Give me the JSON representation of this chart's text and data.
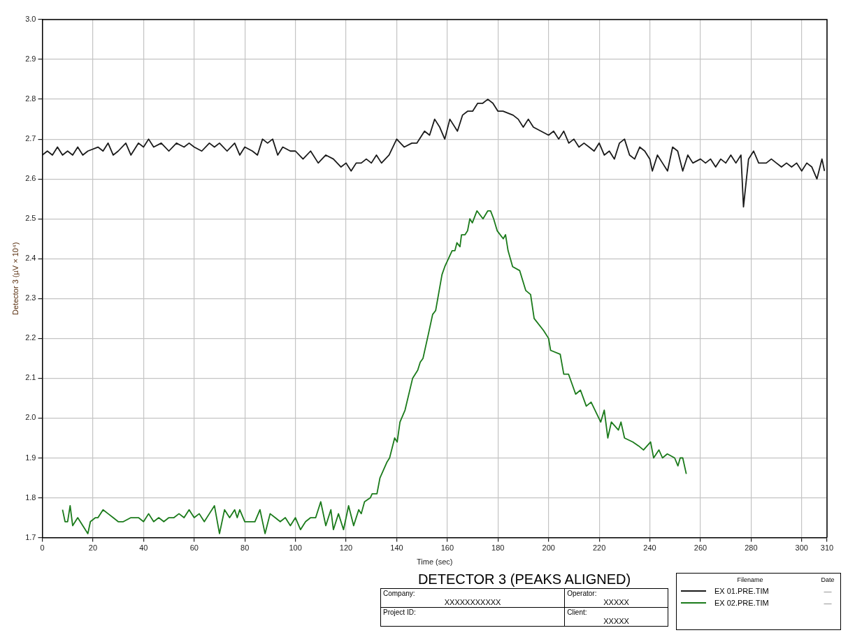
{
  "chart_data": {
    "type": "line",
    "title": "DETECTOR 3 (PEAKS ALIGNED)",
    "xlabel": "Time (sec)",
    "ylabel": "Detector 3 (µV × 10⁴)",
    "legend_title": "Filename",
    "legend": "bottom right",
    "grid": true,
    "xlim": [
      0,
      310
    ],
    "xticks": [
      0,
      20,
      40,
      60,
      80,
      100,
      120,
      140,
      160,
      180,
      200,
      220,
      240,
      260,
      280,
      300,
      310
    ],
    "ylim": [
      1.7,
      3.0
    ],
    "yticks": [
      1.7,
      1.8,
      1.9,
      {
        "value": 2,
        "label": "2.0"
      },
      2.1,
      2.2,
      2.3,
      2.4,
      2.5,
      2.6,
      2.7,
      2.8,
      2.9,
      {
        "value": 3,
        "label": "3.0"
      }
    ],
    "annotations": [
      "Date",
      "—",
      "—",
      "Company:",
      "XXXXXXXXXXX",
      "Operator:",
      "XXXXX",
      "Project ID:",
      "Client:",
      "XXXXX"
    ],
    "series": [
      {
        "name": "EX 01.PRE.TIM",
        "color": "#1a1a1a",
        "x": [
          0,
          2,
          4,
          6,
          8,
          10,
          12,
          14,
          16,
          18,
          22,
          24,
          26,
          28,
          30,
          33,
          35,
          38,
          40,
          42,
          44,
          47,
          50,
          53,
          56,
          58,
          60,
          63,
          66,
          68,
          70,
          73,
          76,
          78,
          80,
          83,
          85,
          87,
          89,
          91,
          93,
          95,
          98,
          100,
          103,
          106,
          109,
          112,
          115,
          118,
          120,
          122,
          124,
          126,
          128,
          130,
          132,
          134,
          137,
          140,
          143,
          146,
          148,
          151,
          153,
          155,
          157,
          159,
          161,
          164,
          166,
          168,
          170,
          172,
          174,
          176,
          178,
          180,
          182,
          186,
          188,
          190,
          192,
          194,
          197,
          200,
          202,
          204,
          206,
          208,
          210,
          212,
          214,
          216,
          218,
          220,
          222,
          224,
          226,
          228,
          230,
          232,
          234,
          236,
          238,
          240,
          241,
          243,
          245,
          247,
          249,
          251,
          253,
          255,
          257,
          260,
          262,
          264,
          266,
          268,
          270,
          272,
          274,
          276,
          277,
          279,
          281,
          283,
          286,
          288,
          290,
          292,
          294,
          296,
          298,
          300,
          302,
          304,
          306,
          308,
          309
        ],
        "values": [
          2.66,
          2.67,
          2.66,
          2.68,
          2.66,
          2.67,
          2.66,
          2.68,
          2.66,
          2.67,
          2.68,
          2.67,
          2.69,
          2.66,
          2.67,
          2.69,
          2.66,
          2.69,
          2.68,
          2.7,
          2.68,
          2.69,
          2.67,
          2.69,
          2.68,
          2.69,
          2.68,
          2.67,
          2.69,
          2.68,
          2.69,
          2.67,
          2.69,
          2.66,
          2.68,
          2.67,
          2.66,
          2.7,
          2.69,
          2.7,
          2.66,
          2.68,
          2.67,
          2.67,
          2.65,
          2.67,
          2.64,
          2.66,
          2.65,
          2.63,
          2.64,
          2.62,
          2.64,
          2.64,
          2.65,
          2.64,
          2.66,
          2.64,
          2.66,
          2.7,
          2.68,
          2.69,
          2.69,
          2.72,
          2.71,
          2.75,
          2.73,
          2.7,
          2.75,
          2.72,
          2.76,
          2.77,
          2.77,
          2.79,
          2.79,
          2.8,
          2.79,
          2.77,
          2.77,
          2.76,
          2.75,
          2.73,
          2.75,
          2.73,
          2.72,
          2.71,
          2.72,
          2.7,
          2.72,
          2.69,
          2.7,
          2.68,
          2.69,
          2.68,
          2.67,
          2.69,
          2.66,
          2.67,
          2.65,
          2.69,
          2.7,
          2.66,
          2.65,
          2.68,
          2.67,
          2.65,
          2.62,
          2.66,
          2.64,
          2.62,
          2.68,
          2.67,
          2.62,
          2.66,
          2.64,
          2.65,
          2.64,
          2.65,
          2.63,
          2.65,
          2.64,
          2.66,
          2.64,
          2.66,
          2.53,
          2.65,
          2.67,
          2.64,
          2.64,
          2.65,
          2.64,
          2.63,
          2.64,
          2.63,
          2.64,
          2.62,
          2.64,
          2.63,
          2.6,
          2.65,
          2.62
        ]
      },
      {
        "name": "EX 02.PRE.TIM",
        "color": "#1a7a1a",
        "x": [
          8,
          9,
          10,
          11,
          12,
          14,
          16,
          18,
          19,
          21,
          22,
          24,
          26,
          28,
          30,
          32,
          35,
          38,
          40,
          42,
          44,
          46,
          48,
          50,
          52,
          54,
          56,
          58,
          60,
          62,
          64,
          66,
          68,
          70,
          72,
          74,
          76,
          77,
          78,
          80,
          82,
          84,
          86,
          88,
          90,
          92,
          94,
          96,
          98,
          100,
          102,
          104,
          106,
          108,
          110,
          112,
          114,
          115,
          117,
          119,
          121,
          123,
          125,
          126,
          127.3,
          129.6,
          130.3,
          132.2,
          133.4,
          136.2,
          137.2,
          139.2,
          140.2,
          141.3,
          143.3,
          146.3,
          148.3,
          149.3,
          150.4,
          152.5,
          154.2,
          155.4,
          157.9,
          159,
          161.9,
          163,
          163.8,
          165,
          165.6,
          167,
          168,
          168.9,
          169.9,
          171.7,
          174.1,
          176,
          177.1,
          178.3,
          179.7,
          182.1,
          183,
          184,
          185.8,
          188.6,
          191,
          192.9,
          194.3,
          198,
          200,
          200.8,
          204.6,
          206,
          207.9,
          210.7,
          212.6,
          214.9,
          216.8,
          220.6,
          222,
          223.4,
          224.8,
          227.6,
          228.6,
          230,
          233.3,
          235.6,
          237.5,
          240.3,
          241.5,
          243.6,
          245,
          246.9,
          249.8,
          251.1,
          252,
          253,
          254.4
        ],
        "values": [
          1.77,
          1.74,
          1.74,
          1.78,
          1.73,
          1.75,
          1.73,
          1.71,
          1.74,
          1.75,
          1.75,
          1.77,
          1.76,
          1.75,
          1.74,
          1.74,
          1.75,
          1.75,
          1.74,
          1.76,
          1.74,
          1.75,
          1.74,
          1.75,
          1.75,
          1.76,
          1.75,
          1.77,
          1.75,
          1.76,
          1.74,
          1.76,
          1.78,
          1.71,
          1.77,
          1.75,
          1.77,
          1.75,
          1.77,
          1.74,
          1.74,
          1.74,
          1.77,
          1.71,
          1.76,
          1.75,
          1.74,
          1.75,
          1.73,
          1.75,
          1.72,
          1.74,
          1.75,
          1.75,
          1.79,
          1.73,
          1.77,
          1.72,
          1.76,
          1.72,
          1.78,
          1.73,
          1.77,
          1.76,
          1.79,
          1.8,
          1.81,
          1.81,
          1.85,
          1.89,
          1.9,
          1.95,
          1.94,
          1.99,
          2.02,
          2.1,
          2.12,
          2.14,
          2.15,
          2.21,
          2.26,
          2.27,
          2.36,
          2.38,
          2.42,
          2.42,
          2.44,
          2.43,
          2.46,
          2.46,
          2.47,
          2.5,
          2.49,
          2.52,
          2.5,
          2.52,
          2.52,
          2.5,
          2.47,
          2.45,
          2.46,
          2.42,
          2.38,
          2.37,
          2.32,
          2.31,
          2.25,
          2.22,
          2.2,
          2.17,
          2.16,
          2.11,
          2.11,
          2.06,
          2.07,
          2.03,
          2.04,
          1.99,
          2.02,
          1.95,
          1.99,
          1.97,
          1.99,
          1.95,
          1.94,
          1.93,
          1.92,
          1.94,
          1.9,
          1.92,
          1.9,
          1.91,
          1.9,
          1.88,
          1.9,
          1.9,
          1.86
        ]
      }
    ]
  }
}
